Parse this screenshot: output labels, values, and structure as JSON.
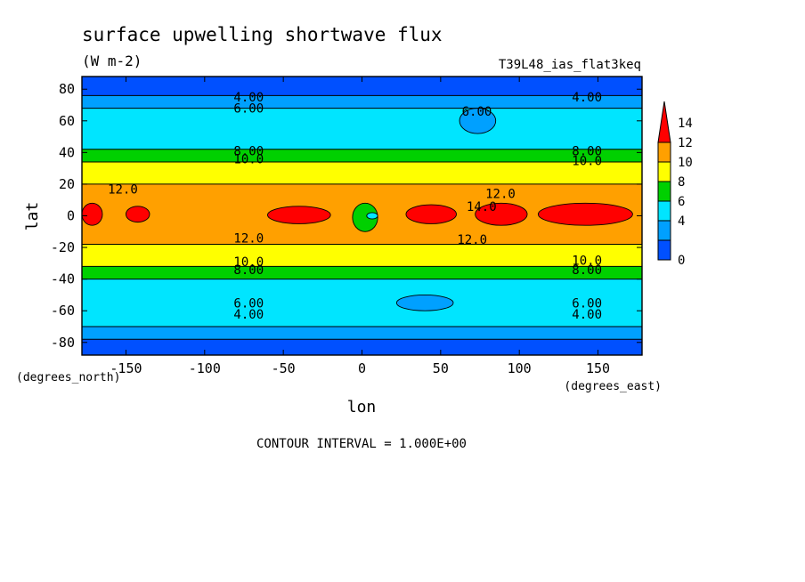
{
  "chart_data": {
    "type": "heatmap",
    "title": "surface upwelling shortwave flux",
    "units": "(W m-2)",
    "run_label": "T39L48_ias_flat3keq",
    "xlabel": "lon",
    "ylabel": "lat",
    "x_units": "(degrees_east)",
    "y_units": "(degrees_north)",
    "xlim": [
      -178,
      178
    ],
    "ylim": [
      -88,
      88
    ],
    "x_ticks": [
      -150,
      -100,
      -50,
      0,
      50,
      100,
      150
    ],
    "x_tick_labels": [
      "-150",
      "-100",
      "-50",
      "0",
      "50",
      "100",
      "150"
    ],
    "y_ticks": [
      80,
      60,
      40,
      20,
      0,
      -20,
      -40,
      -60,
      -80
    ],
    "y_tick_labels": [
      "80",
      "60",
      "40",
      "20",
      "0",
      "-20",
      "-40",
      "-60",
      "-80"
    ],
    "colorbar": {
      "levels": [
        0,
        2,
        4,
        6,
        8,
        10,
        12,
        14
      ],
      "labels": [
        "0",
        "4",
        "6",
        "8",
        "10",
        "12",
        "14"
      ],
      "colors": [
        "#0050ff",
        "#00a0ff",
        "#00e5ff",
        "#00d000",
        "#ffff00",
        "#ffa000",
        "#ff0000"
      ]
    },
    "zonal_bands": [
      {
        "lat_min": 76,
        "lat_max": 88,
        "level": 2
      },
      {
        "lat_min": 68,
        "lat_max": 76,
        "level": 4
      },
      {
        "lat_min": 42,
        "lat_max": 68,
        "level": 6
      },
      {
        "lat_min": 34,
        "lat_max": 42,
        "level": 8
      },
      {
        "lat_min": 20,
        "lat_max": 34,
        "level": 10
      },
      {
        "lat_min": -18,
        "lat_max": 20,
        "level": 12
      },
      {
        "lat_min": -32,
        "lat_max": -18,
        "level": 10
      },
      {
        "lat_min": -40,
        "lat_max": -32,
        "level": 8
      },
      {
        "lat_min": -70,
        "lat_max": -40,
        "level": 6
      },
      {
        "lat_min": -78,
        "lat_max": -70,
        "level": 4
      },
      {
        "lat_min": -88,
        "lat_max": -78,
        "level": 2
      }
    ],
    "maxima_regions": [
      {
        "lon": [
          -178,
          -165
        ],
        "lat": [
          -6,
          8
        ],
        "level": 14
      },
      {
        "lon": [
          -150,
          -135
        ],
        "lat": [
          -4,
          6
        ],
        "level": 14
      },
      {
        "lon": [
          -60,
          -20
        ],
        "lat": [
          -5,
          6
        ],
        "level": 14
      },
      {
        "lon": [
          28,
          60
        ],
        "lat": [
          -5,
          7
        ],
        "level": 14
      },
      {
        "lon": [
          72,
          105
        ],
        "lat": [
          -6,
          8
        ],
        "level": 14
      },
      {
        "lon": [
          112,
          172
        ],
        "lat": [
          -6,
          8
        ],
        "level": 14
      },
      {
        "lon": [
          -6,
          10
        ],
        "lat": [
          -10,
          8
        ],
        "level": 8
      },
      {
        "lon": [
          3,
          10
        ],
        "lat": [
          -2,
          2
        ],
        "level": 6
      },
      {
        "lon": [
          62,
          85
        ],
        "lat": [
          52,
          68
        ],
        "level": 4
      },
      {
        "lon": [
          22,
          58
        ],
        "lat": [
          -60,
          -50
        ],
        "level": 4
      }
    ],
    "contour_labels": [
      {
        "text": "4.00",
        "lon": -72,
        "lat": 75
      },
      {
        "text": "4.00",
        "lon": 143,
        "lat": 75
      },
      {
        "text": "6.00",
        "lon": -72,
        "lat": 68
      },
      {
        "text": "6.00",
        "lon": 73,
        "lat": 66
      },
      {
        "text": "8.00",
        "lon": -72,
        "lat": 41
      },
      {
        "text": "8.00",
        "lon": 143,
        "lat": 41
      },
      {
        "text": "10.0",
        "lon": -72,
        "lat": 36
      },
      {
        "text": "10.0",
        "lon": 143,
        "lat": 35
      },
      {
        "text": "12.0",
        "lon": -152,
        "lat": 17
      },
      {
        "text": "12.0",
        "lon": 88,
        "lat": 14
      },
      {
        "text": "14.0",
        "lon": 76,
        "lat": 6
      },
      {
        "text": "12.0",
        "lon": -72,
        "lat": -14
      },
      {
        "text": "12.0",
        "lon": 70,
        "lat": -15
      },
      {
        "text": "10.0",
        "lon": -72,
        "lat": -29
      },
      {
        "text": "10.0",
        "lon": 143,
        "lat": -28
      },
      {
        "text": "8.00",
        "lon": -72,
        "lat": -34
      },
      {
        "text": "8.00",
        "lon": 143,
        "lat": -34
      },
      {
        "text": "6.00",
        "lon": -72,
        "lat": -55
      },
      {
        "text": "6.00",
        "lon": 143,
        "lat": -55
      },
      {
        "text": "4.00",
        "lon": -72,
        "lat": -62
      },
      {
        "text": "4.00",
        "lon": 143,
        "lat": -62
      }
    ],
    "footer": "CONTOUR INTERVAL = 1.000E+00"
  }
}
